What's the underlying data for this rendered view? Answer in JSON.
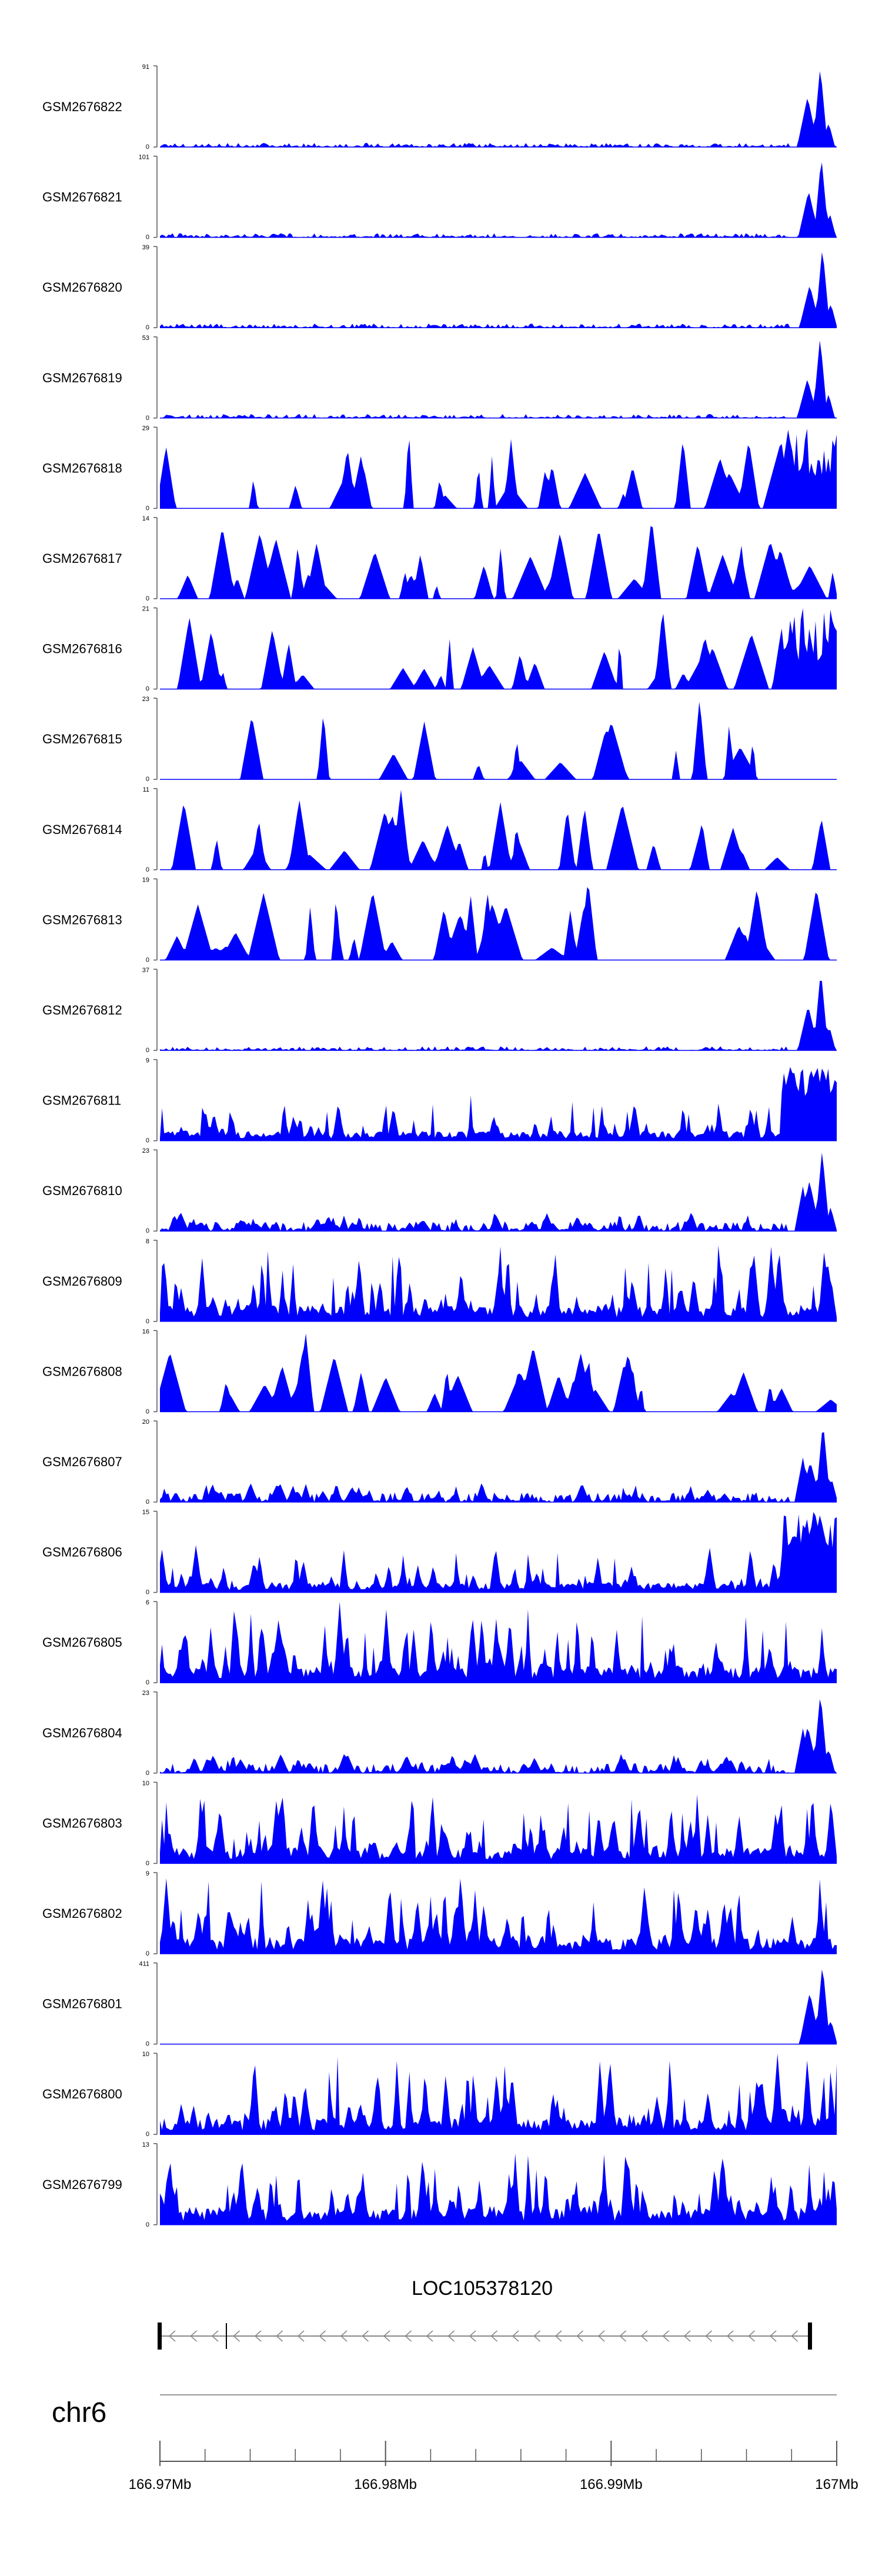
{
  "chart_data": {
    "type": "area",
    "title": "",
    "color": "#0000ff",
    "axis_color": "#555555",
    "x_range_mb": [
      166.97,
      167.0
    ],
    "tracks": [
      {
        "name": "GSM2676822",
        "ymax": "91",
        "ymin": "0",
        "max": 91,
        "profile": "endpeak-low"
      },
      {
        "name": "GSM2676821",
        "ymax": "101",
        "ymin": "0",
        "max": 101,
        "profile": "endpeak-low"
      },
      {
        "name": "GSM2676820",
        "ymax": "39",
        "ymin": "0",
        "max": 39,
        "profile": "endpeak-low"
      },
      {
        "name": "GSM2676819",
        "ymax": "53",
        "ymin": "0",
        "max": 53,
        "profile": "endpeak-low"
      },
      {
        "name": "GSM2676818",
        "ymax": "29",
        "ymin": "0",
        "max": 29,
        "profile": "sparse-end"
      },
      {
        "name": "GSM2676817",
        "ymax": "14",
        "ymin": "0",
        "max": 14,
        "profile": "sparse"
      },
      {
        "name": "GSM2676816",
        "ymax": "21",
        "ymin": "0",
        "max": 21,
        "profile": "sparse-end"
      },
      {
        "name": "GSM2676815",
        "ymax": "23",
        "ymin": "0",
        "max": 23,
        "profile": "very-sparse"
      },
      {
        "name": "GSM2676814",
        "ymax": "11",
        "ymin": "0",
        "max": 11,
        "profile": "sparse"
      },
      {
        "name": "GSM2676813",
        "ymax": "19",
        "ymin": "0",
        "max": 19,
        "profile": "sparse"
      },
      {
        "name": "GSM2676812",
        "ymax": "37",
        "ymin": "0",
        "max": 37,
        "profile": "endpeak-low"
      },
      {
        "name": "GSM2676811",
        "ymax": "9",
        "ymin": "0",
        "max": 9,
        "profile": "dense-end"
      },
      {
        "name": "GSM2676810",
        "ymax": "23",
        "ymin": "0",
        "max": 23,
        "profile": "endpeak-mid"
      },
      {
        "name": "GSM2676809",
        "ymax": "8",
        "ymin": "0",
        "max": 8,
        "profile": "dense"
      },
      {
        "name": "GSM2676808",
        "ymax": "16",
        "ymin": "0",
        "max": 16,
        "profile": "sparse"
      },
      {
        "name": "GSM2676807",
        "ymax": "20",
        "ymin": "0",
        "max": 20,
        "profile": "endpeak-mid"
      },
      {
        "name": "GSM2676806",
        "ymax": "15",
        "ymin": "0",
        "max": 15,
        "profile": "dense-end"
      },
      {
        "name": "GSM2676805",
        "ymax": "6",
        "ymin": "0",
        "max": 6,
        "profile": "dense"
      },
      {
        "name": "GSM2676804",
        "ymax": "23",
        "ymin": "0",
        "max": 23,
        "profile": "endpeak-mid"
      },
      {
        "name": "GSM2676803",
        "ymax": "10",
        "ymin": "0",
        "max": 10,
        "profile": "dense"
      },
      {
        "name": "GSM2676802",
        "ymax": "9",
        "ymin": "0",
        "max": 9,
        "profile": "dense"
      },
      {
        "name": "GSM2676801",
        "ymax": "411",
        "ymin": "0",
        "max": 411,
        "profile": "endpeak-flat"
      },
      {
        "name": "GSM2676800",
        "ymax": "10",
        "ymin": "0",
        "max": 10,
        "profile": "dense"
      },
      {
        "name": "GSM2676799",
        "ymax": "13",
        "ymin": "0",
        "max": 13,
        "profile": "dense"
      }
    ],
    "gene": {
      "name": "LOC105378120",
      "strand": "-"
    },
    "chromosome": "chr6",
    "x_ticks": [
      {
        "value": 166.97,
        "label": "166.97Mb"
      },
      {
        "value": 166.98,
        "label": "166.98Mb"
      },
      {
        "value": 166.99,
        "label": "166.99Mb"
      },
      {
        "value": 167.0,
        "label": "167Mb"
      }
    ]
  }
}
